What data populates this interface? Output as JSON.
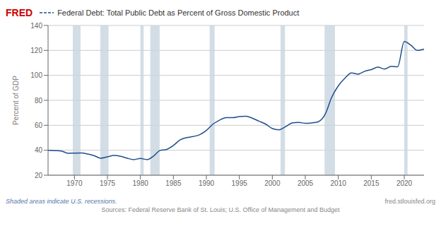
{
  "chart_data": {
    "type": "line",
    "title": "Federal Debt: Total Public Debt as Percent of Gross Domestic Product",
    "ylabel": "Percent of GDP",
    "annotations": [
      "FRED",
      "Shaded areas indicate U.S. recessions.",
      "Sources: Federal Reserve Bank of St. Louis; U.S. Office of Management and Budget",
      "fred.stlouisfed.org"
    ],
    "x": [
      1966,
      1967,
      1968,
      1969,
      1970,
      1971,
      1972,
      1973,
      1974,
      1975,
      1976,
      1977,
      1978,
      1979,
      1980,
      1981,
      1982,
      1983,
      1984,
      1985,
      1986,
      1987,
      1988,
      1989,
      1990,
      1991,
      1992,
      1993,
      1994,
      1995,
      1996,
      1997,
      1998,
      1999,
      2000,
      2001,
      2002,
      2003,
      2004,
      2005,
      2006,
      2007,
      2008,
      2009,
      2010,
      2011,
      2012,
      2013,
      2014,
      2015,
      2016,
      2017,
      2018,
      2019,
      2020,
      2021,
      2022,
      2023
    ],
    "values": [
      40.0,
      39.7,
      39.4,
      37.6,
      37.7,
      37.8,
      37.0,
      35.6,
      33.6,
      34.7,
      35.8,
      35.1,
      33.6,
      32.5,
      33.4,
      32.5,
      35.3,
      39.9,
      40.7,
      43.8,
      48.2,
      50.1,
      51.0,
      52.5,
      55.9,
      60.9,
      64.1,
      66.1,
      66.1,
      67.0,
      67.3,
      65.6,
      63.2,
      60.9,
      57.4,
      56.4,
      58.8,
      61.9,
      62.3,
      61.6,
      61.9,
      62.9,
      68.7,
      82.4,
      91.6,
      97.7,
      102.0,
      101.0,
      103.3,
      104.6,
      106.6,
      105.0,
      107.2,
      106.9,
      127.1,
      124.2,
      120.0,
      121.0
    ],
    "color": "#1f4e8c",
    "xlim": [
      1966,
      2023
    ],
    "xticks": [
      1970,
      1975,
      1980,
      1985,
      1990,
      1995,
      2000,
      2005,
      2010,
      2015,
      2020
    ],
    "ylim": [
      20,
      140
    ],
    "yticks": [
      20,
      40,
      60,
      80,
      100,
      120,
      140
    ],
    "grid": true,
    "shaded": {
      "ranges": [
        [
          1969.75,
          1970.92
        ],
        [
          1973.92,
          1975.17
        ],
        [
          1980.0,
          1980.5
        ],
        [
          1981.5,
          1982.92
        ],
        [
          1990.5,
          1991.25
        ],
        [
          2001.25,
          2001.92
        ],
        [
          2007.92,
          2009.5
        ],
        [
          2020.0,
          2020.5
        ]
      ],
      "color": "#c8d4e0"
    }
  }
}
